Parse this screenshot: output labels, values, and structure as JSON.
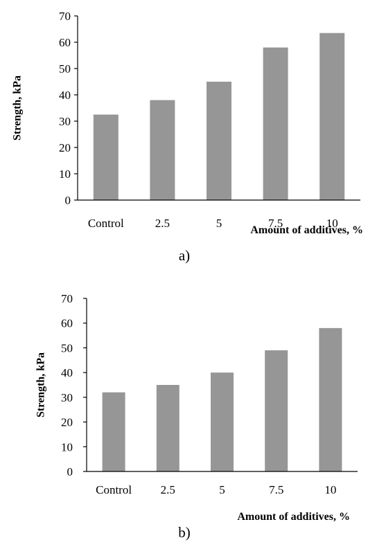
{
  "chart_data": [
    {
      "type": "bar",
      "panel_label": "a)",
      "categories": [
        "Control",
        "2.5",
        "5",
        "7.5",
        "10"
      ],
      "values": [
        32.5,
        38,
        45,
        58,
        63.5
      ],
      "xlabel": "Amount of additives, %",
      "ylabel": "Strength, kPa",
      "ylim": [
        0,
        70
      ],
      "yticks": [
        "0",
        "10",
        "20",
        "30",
        "40",
        "50",
        "60",
        "70"
      ],
      "grid": false,
      "bar_color": "#969696"
    },
    {
      "type": "bar",
      "panel_label": "b)",
      "categories": [
        "Control",
        "2.5",
        "5",
        "7.5",
        "10"
      ],
      "values": [
        32,
        35,
        40,
        49,
        58
      ],
      "xlabel": "Amount of additives, %",
      "ylabel": "Strength, kPa",
      "ylim": [
        0,
        70
      ],
      "yticks": [
        "0",
        "10",
        "20",
        "30",
        "40",
        "50",
        "60",
        "70"
      ],
      "grid": false,
      "bar_color": "#969696"
    }
  ]
}
